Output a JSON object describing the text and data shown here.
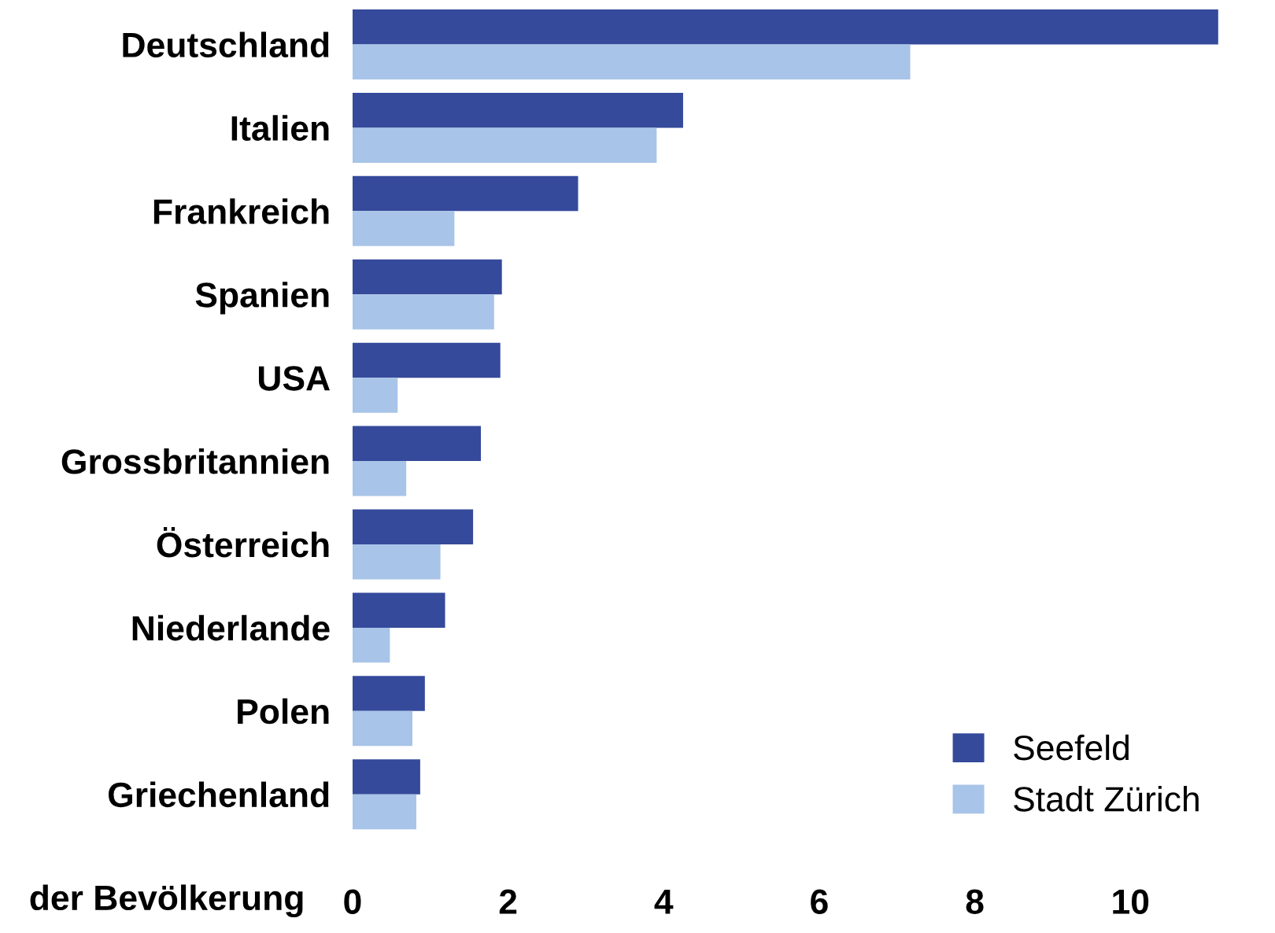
{
  "chart_data": {
    "type": "bar",
    "orientation": "horizontal",
    "xlabel": "der Bevölkerung",
    "categories": [
      "Deutschland",
      "Italien",
      "Frankreich",
      "Spanien",
      "USA",
      "Grossbritannien",
      "Österreich",
      "Niederlande",
      "Polen",
      "Griechenland"
    ],
    "series": [
      {
        "name": "Seefeld",
        "color": "#354a9b",
        "values": [
          11.13,
          4.25,
          2.9,
          1.92,
          1.9,
          1.65,
          1.55,
          1.19,
          0.93,
          0.87
        ]
      },
      {
        "name": "Stadt Zürich",
        "color": "#a8c4e8",
        "values": [
          7.17,
          3.91,
          1.31,
          1.82,
          0.58,
          0.69,
          1.13,
          0.48,
          0.77,
          0.82
        ]
      }
    ],
    "xlim": [
      0,
      11.13
    ],
    "xticks": [
      0,
      2,
      4,
      6,
      8,
      10
    ],
    "grid": false,
    "legend": "bottom right"
  }
}
